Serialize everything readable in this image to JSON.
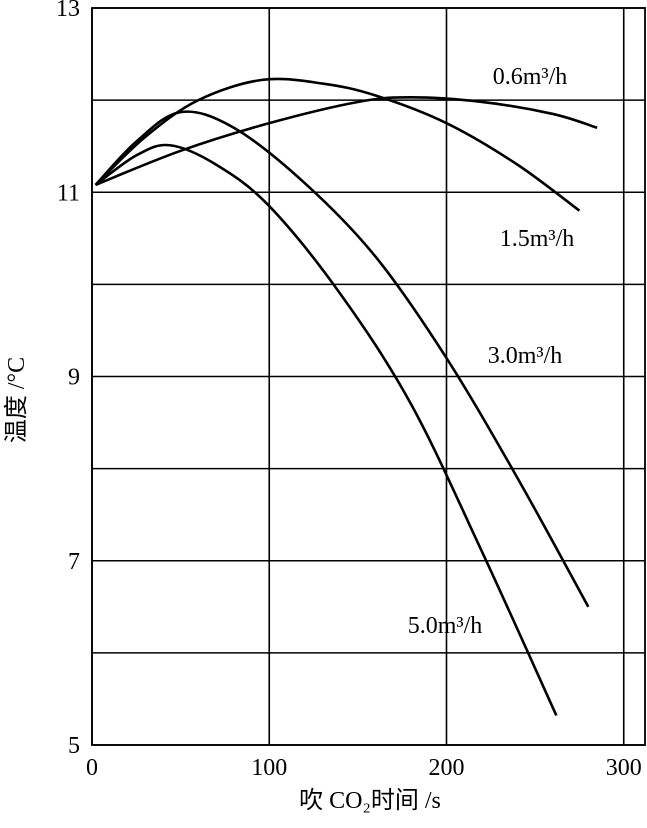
{
  "chart_data": {
    "type": "line",
    "x_label": "吹 CO₂时间 /s",
    "y_label": "温度 /°C",
    "xlim": [
      0,
      312
    ],
    "xticks": [
      0,
      100,
      200,
      300
    ],
    "ylim": [
      5,
      13
    ],
    "yticks": [
      5,
      7,
      9,
      11,
      13
    ],
    "minor_yticks": [
      6,
      8,
      10,
      12
    ],
    "grid": true,
    "series": [
      {
        "name": "0.6m³/h",
        "color": "#000000",
        "x": [
          2,
          50,
          100,
          150,
          180,
          220,
          260,
          285
        ],
        "values": [
          11.08,
          11.45,
          11.75,
          11.98,
          12.03,
          11.98,
          11.85,
          11.7
        ]
      },
      {
        "name": "1.5m³/h",
        "color": "#000000",
        "x": [
          2,
          30,
          60,
          96,
          130,
          160,
          200,
          240,
          275
        ],
        "values": [
          11.08,
          11.6,
          12.0,
          12.22,
          12.18,
          12.05,
          11.75,
          11.3,
          10.8
        ]
      },
      {
        "name": "3.0m³/h",
        "color": "#000000",
        "x": [
          2,
          25,
          50,
          80,
          120,
          160,
          200,
          240,
          280
        ],
        "values": [
          11.08,
          11.55,
          11.87,
          11.7,
          11.1,
          10.3,
          9.2,
          7.9,
          6.5
        ]
      },
      {
        "name": "5.0m³/h",
        "color": "#000000",
        "x": [
          2,
          25,
          44,
          70,
          100,
          140,
          180,
          220,
          262
        ],
        "values": [
          11.08,
          11.4,
          11.51,
          11.3,
          10.85,
          9.9,
          8.7,
          7.1,
          5.32
        ]
      }
    ]
  }
}
